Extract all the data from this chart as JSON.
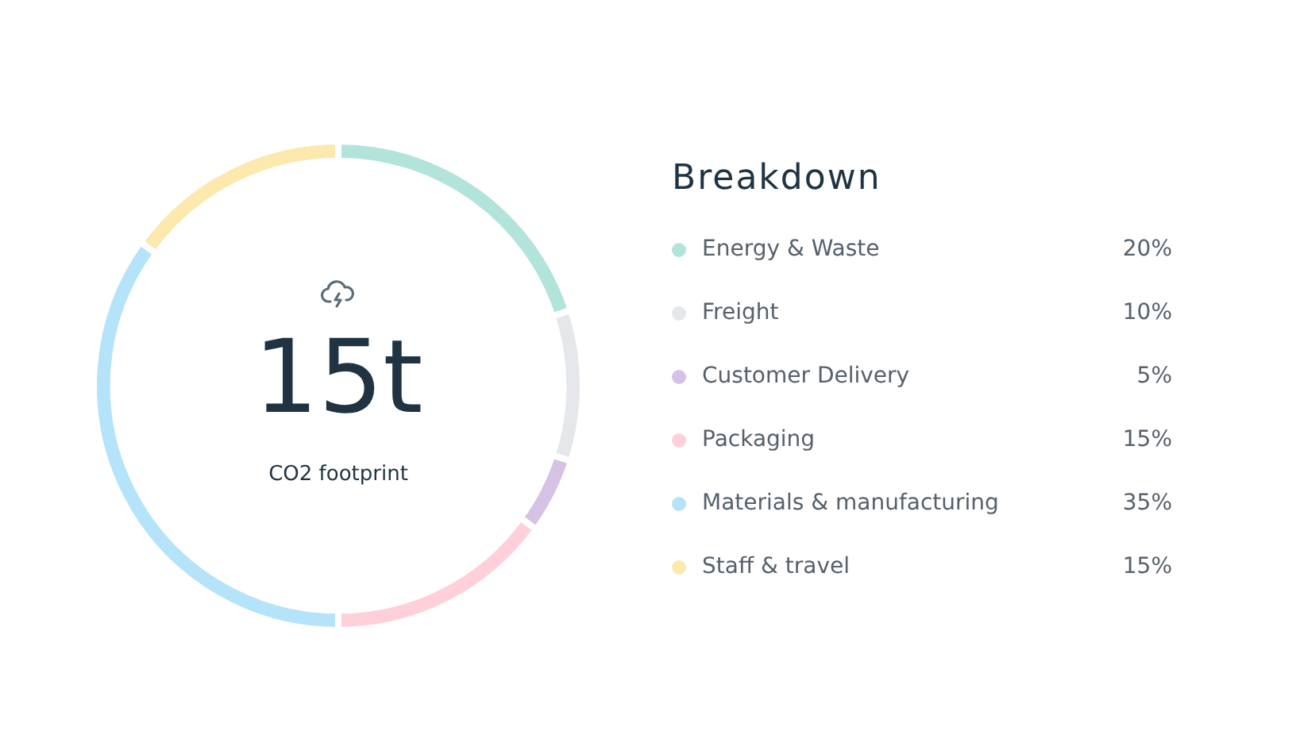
{
  "chart_data": {
    "type": "donut",
    "legend_title": "Breakdown",
    "annotations": [
      "15t",
      "CO2 footprint"
    ],
    "legend": "right",
    "categories": [
      "Energy & Waste",
      "Freight",
      "Customer Delivery",
      "Packaging",
      "Materials & manufacturing",
      "Staff & travel"
    ],
    "values": [
      20,
      10,
      5,
      15,
      35,
      15
    ],
    "value_labels": [
      "20%",
      "10%",
      "5%",
      "15%",
      "35%",
      "15%"
    ],
    "colors": [
      "#b3e4dc",
      "#e5e7eb",
      "#d5c2e5",
      "#ffd0da",
      "#b5e3f9",
      "#fde8ad"
    ]
  }
}
